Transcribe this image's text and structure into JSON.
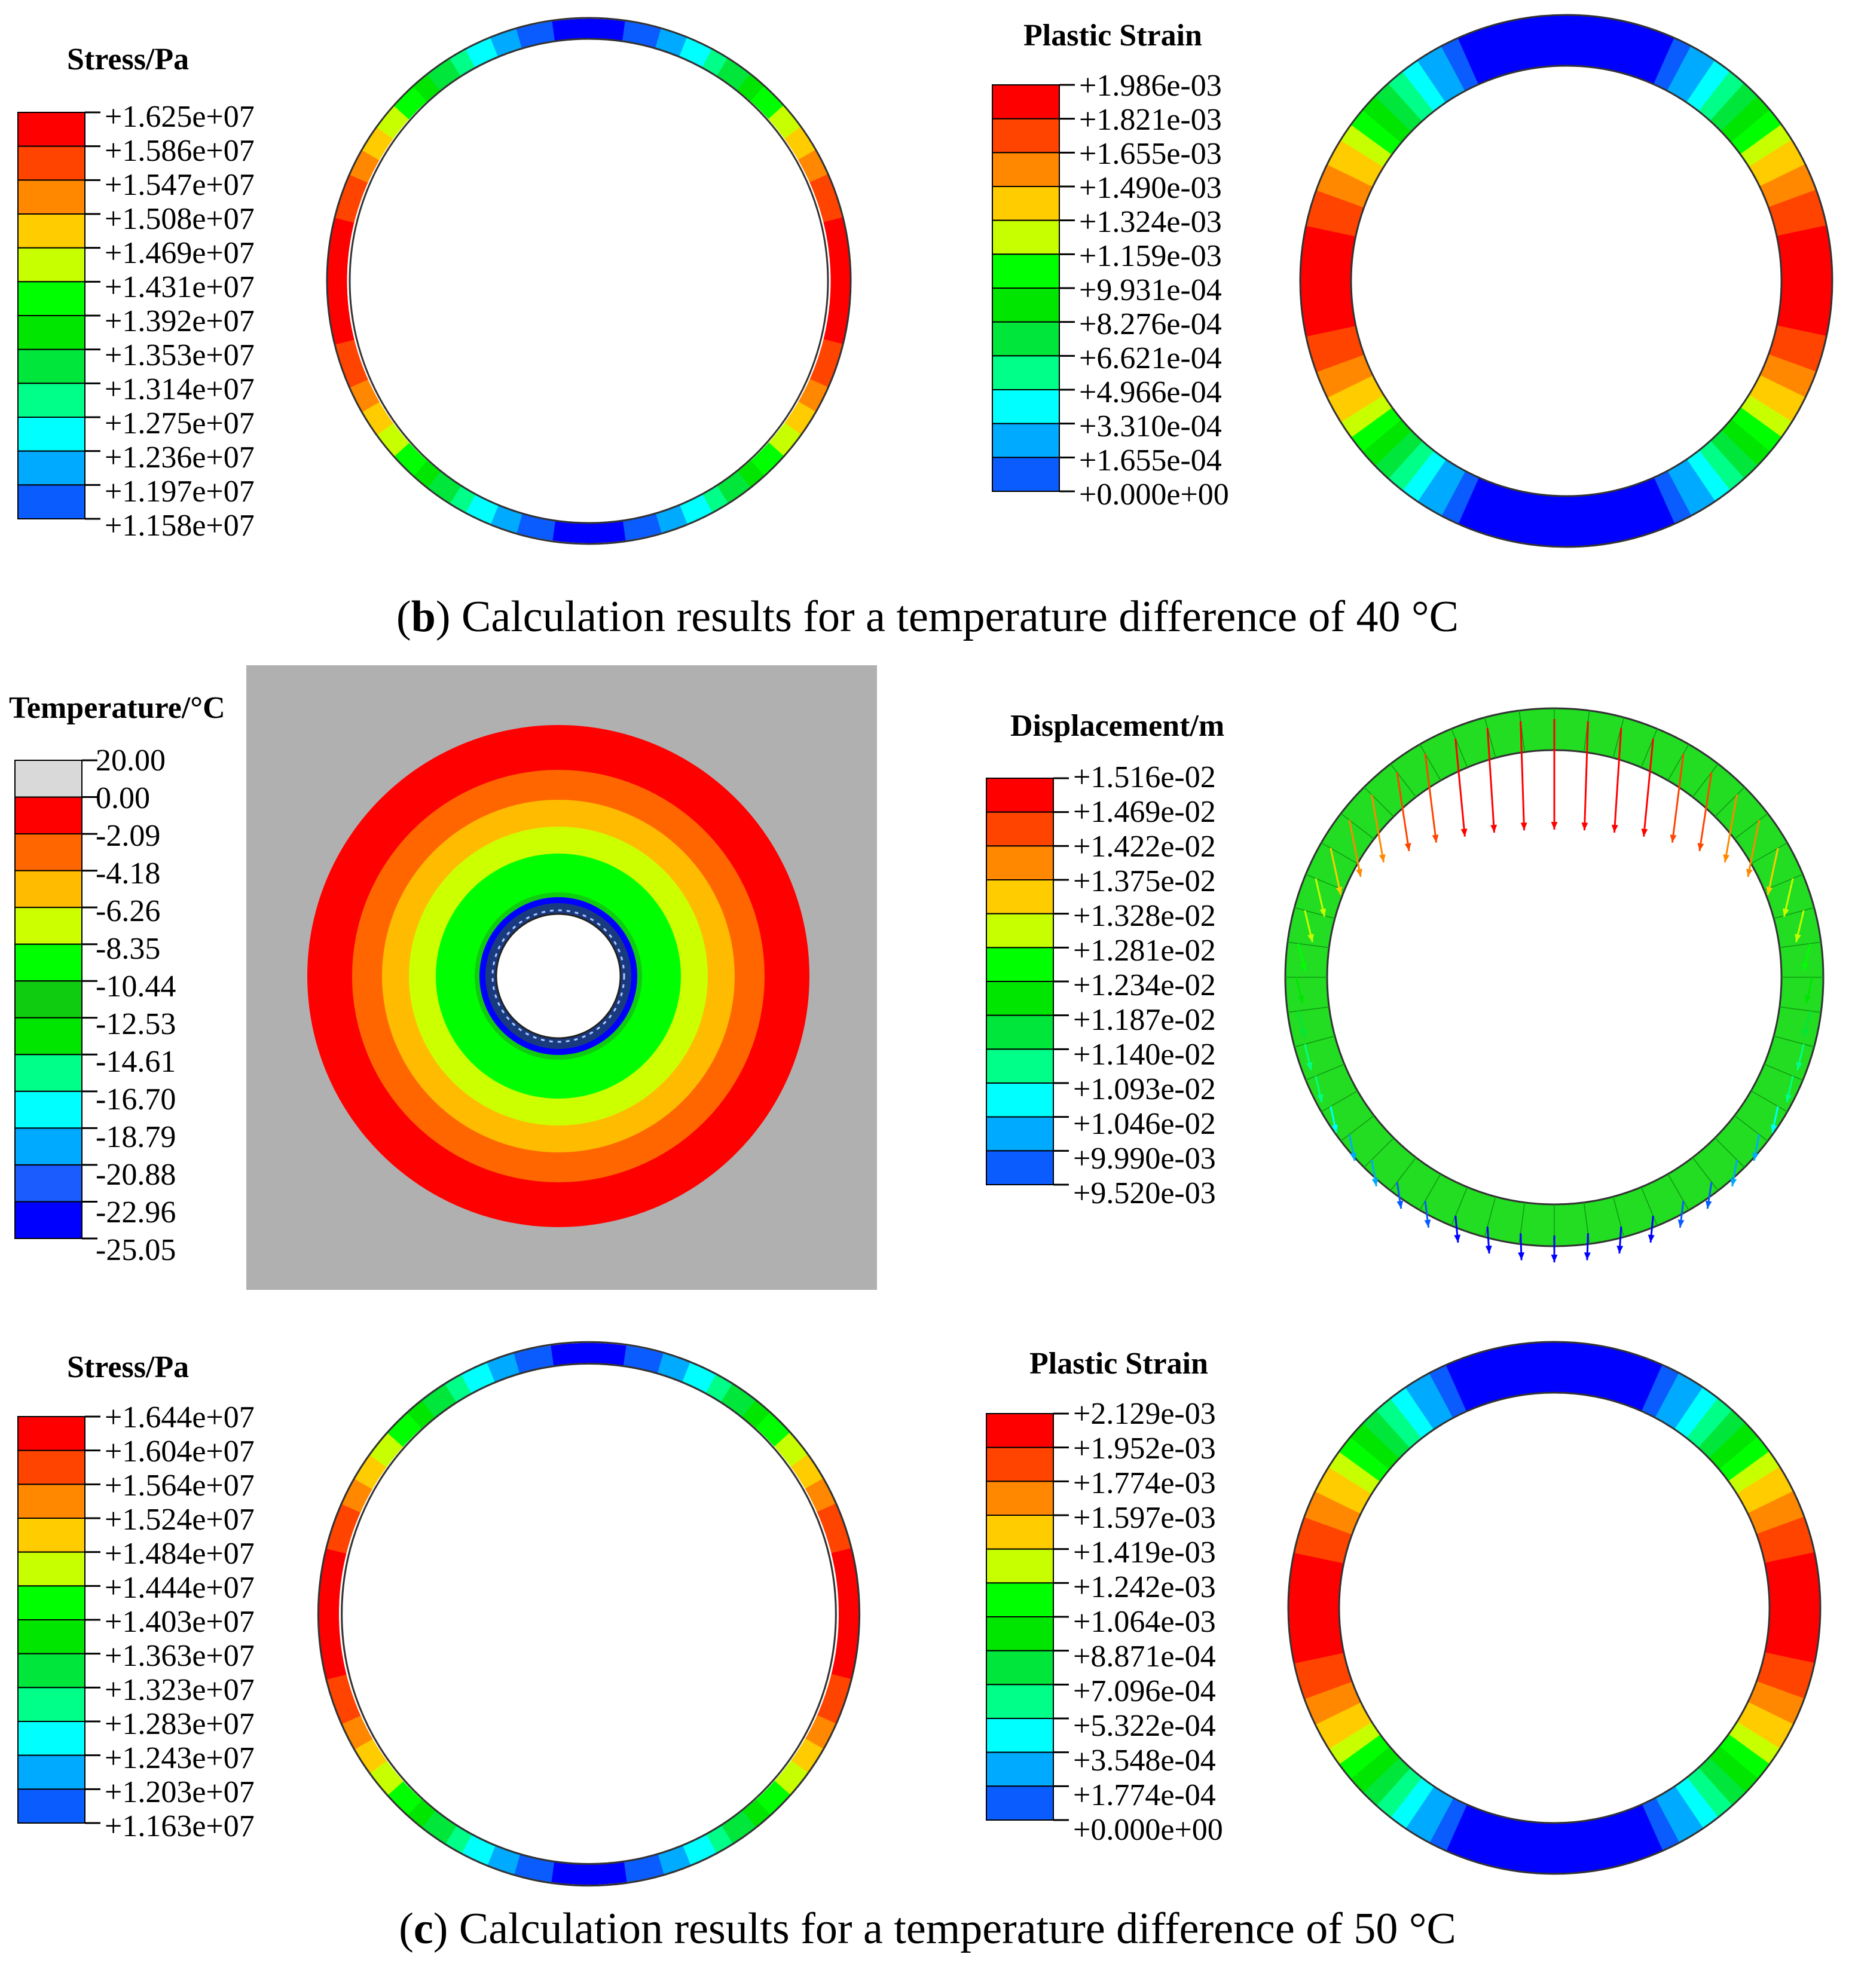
{
  "palette_standard": [
    "#0000ff",
    "#0a5cff",
    "#00aaff",
    "#00ffff",
    "#00ff88",
    "#00e63a",
    "#00e600",
    "#00ff00",
    "#c8ff00",
    "#ffcc00",
    "#ff8800",
    "#ff4400",
    "#ff0000"
  ],
  "palette_temperature": [
    "#0000ff",
    "#1b5cff",
    "#00aaff",
    "#00ffff",
    "#00ff88",
    "#00e600",
    "#10cc10",
    "#00ff00",
    "#ccff00",
    "#ffbb00",
    "#ff6600",
    "#ff0000",
    "#d9d9d9"
  ],
  "colors": {
    "ring_outline": "#333333",
    "temperature_background": "#b0b0b0",
    "hole_dark": "#1a3a80"
  },
  "panels": {
    "b_stress": {
      "title": "Stress/Pa",
      "values": [
        "+1.625e+07",
        "+1.586e+07",
        "+1.547e+07",
        "+1.508e+07",
        "+1.469e+07",
        "+1.431e+07",
        "+1.392e+07",
        "+1.353e+07",
        "+1.314e+07",
        "+1.275e+07",
        "+1.236e+07",
        "+1.197e+07",
        "+1.158e+07"
      ]
    },
    "b_strain": {
      "title": "Plastic Strain",
      "values": [
        "+1.986e-03",
        "+1.821e-03",
        "+1.655e-03",
        "+1.490e-03",
        "+1.324e-03",
        "+1.159e-03",
        "+9.931e-04",
        "+8.276e-04",
        "+6.621e-04",
        "+4.966e-04",
        "+3.310e-04",
        "+1.655e-04",
        "+0.000e+00"
      ]
    },
    "c_temperature": {
      "title": "Temperature/°C",
      "values": [
        "20.00",
        "0.00",
        "-2.09",
        "-4.18",
        "-6.26",
        "-8.35",
        "-10.44",
        "-12.53",
        "-14.61",
        "-16.70",
        "-18.79",
        "-20.88",
        "-22.96",
        "-25.05"
      ]
    },
    "c_displacement": {
      "title": "Displacement/m",
      "values": [
        "+1.516e-02",
        "+1.469e-02",
        "+1.422e-02",
        "+1.375e-02",
        "+1.328e-02",
        "+1.281e-02",
        "+1.234e-02",
        "+1.187e-02",
        "+1.140e-02",
        "+1.093e-02",
        "+1.046e-02",
        "+9.990e-03",
        "+9.520e-03"
      ]
    },
    "c_stress": {
      "title": "Stress/Pa",
      "values": [
        "+1.644e+07",
        "+1.604e+07",
        "+1.564e+07",
        "+1.524e+07",
        "+1.484e+07",
        "+1.444e+07",
        "+1.403e+07",
        "+1.363e+07",
        "+1.323e+07",
        "+1.283e+07",
        "+1.243e+07",
        "+1.203e+07",
        "+1.163e+07"
      ]
    },
    "c_strain": {
      "title": "Plastic Strain",
      "values": [
        "+2.129e-03",
        "+1.952e-03",
        "+1.774e-03",
        "+1.597e-03",
        "+1.419e-03",
        "+1.242e-03",
        "+1.064e-03",
        "+8.871e-04",
        "+7.096e-04",
        "+5.322e-04",
        "+3.548e-04",
        "+1.774e-04",
        "+0.000e+00"
      ]
    }
  },
  "captions": {
    "b": {
      "letter": "b",
      "text": " Calculation results for a temperature difference of 40 °C"
    },
    "c": {
      "letter": "c",
      "text": " Calculation results for a temperature difference of 50 °C"
    }
  }
}
